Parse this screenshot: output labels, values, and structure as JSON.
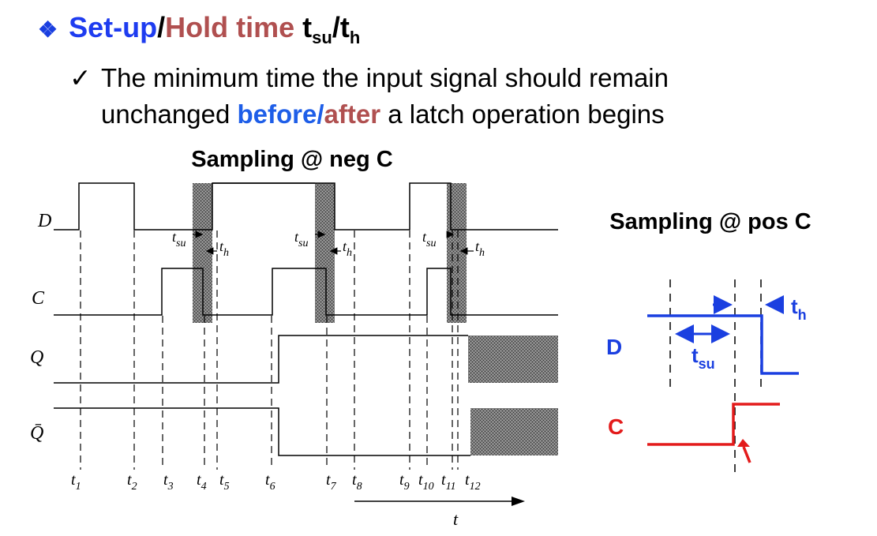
{
  "title": {
    "bullet_icon": "diamond-star-icon",
    "setup_label": "Set-up",
    "slash1": "/",
    "hold_label": "Hold time",
    "t_label": " t",
    "su_sub": "su",
    "slash2": "/t",
    "h_sub": "h"
  },
  "bullet": {
    "check_icon": "check-icon",
    "text1": "The minimum time the input signal should remain",
    "text2_pre": "unchanged ",
    "before": "before",
    "slash": "/",
    "after": "after",
    "text2_post": " a latch operation begins"
  },
  "left_diagram": {
    "caption": "Sampling @ neg C",
    "signals": [
      "D",
      "C",
      "Q",
      "Q̄"
    ],
    "time_markers": [
      "t1",
      "t2",
      "t3",
      "t4",
      "t5",
      "t6",
      "t7",
      "t8",
      "t9",
      "t10",
      "t11",
      "t12"
    ],
    "axis_label": "t",
    "tsu_label": "t",
    "tsu_sub": "su",
    "th_label": "t",
    "th_sub": "h"
  },
  "right_diagram": {
    "caption": "Sampling @ pos C",
    "d_label": "D",
    "c_label": "C",
    "th_label": "t",
    "th_sub": "h",
    "tsu_label": "t",
    "tsu_sub": "su",
    "colors": {
      "d": "#1a3fe0",
      "c": "#e31b1b"
    }
  }
}
